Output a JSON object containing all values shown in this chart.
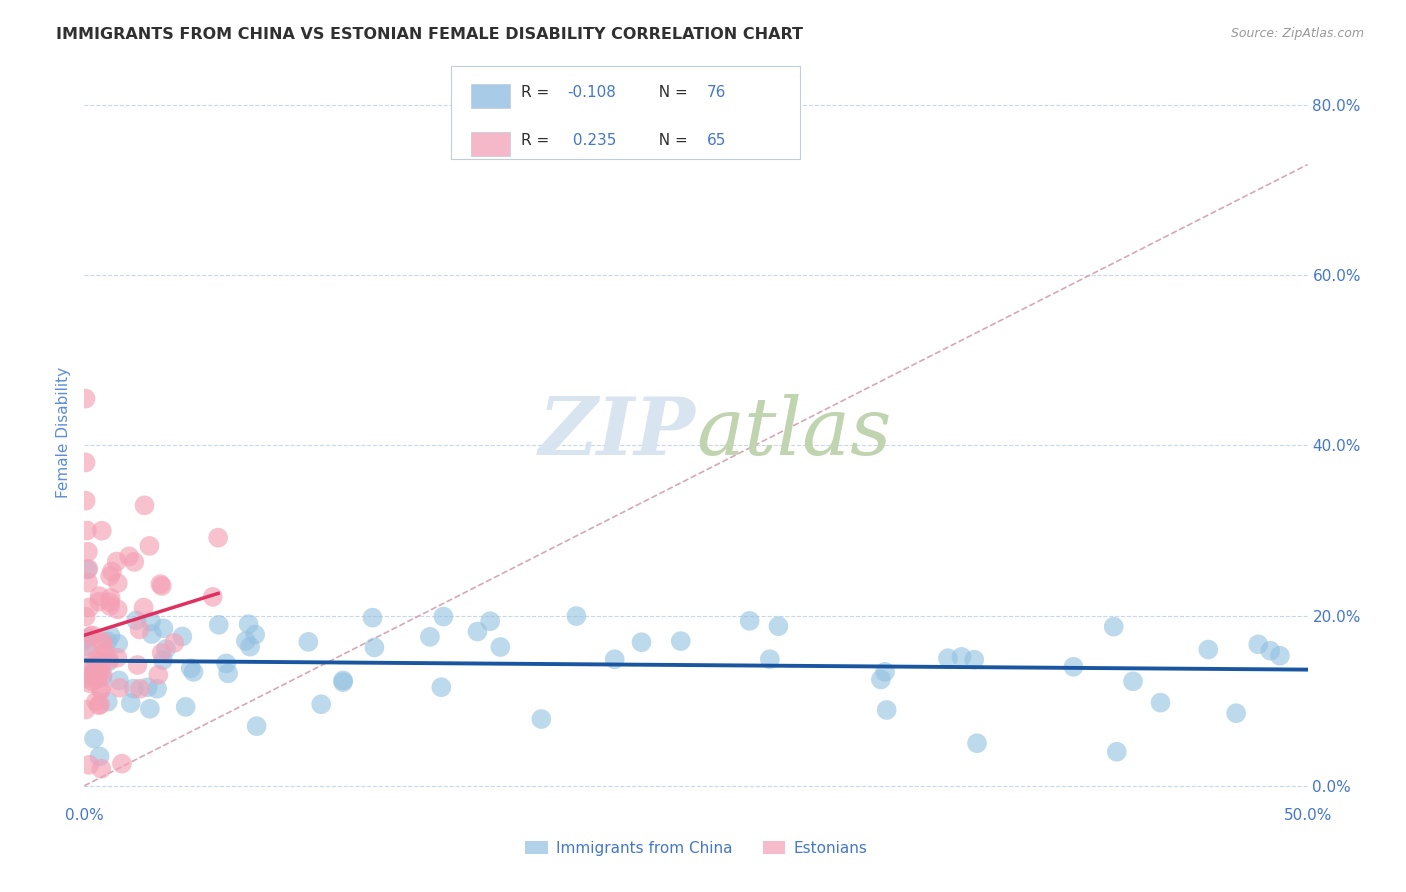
{
  "title": "IMMIGRANTS FROM CHINA VS ESTONIAN FEMALE DISABILITY CORRELATION CHART",
  "source_text": "Source: ZipAtlas.com",
  "ylabel": "Female Disability",
  "xlim": [
    0.0,
    0.5
  ],
  "ylim": [
    -0.02,
    0.85
  ],
  "xtick_vals": [
    0.0,
    0.1,
    0.2,
    0.3,
    0.4,
    0.5
  ],
  "xtick_labels": [
    "0.0%",
    "",
    "",
    "",
    "",
    "50.0%"
  ],
  "ytick_vals": [
    0.0,
    0.2,
    0.4,
    0.6,
    0.8
  ],
  "ytick_labels": [
    "0.0%",
    "20.0%",
    "40.0%",
    "60.0%",
    "80.0%"
  ],
  "legend_label1": "Immigrants from China",
  "legend_label2": "Estonians",
  "blue_color": "#92c0e0",
  "pink_color": "#f4a0b5",
  "blue_line_color": "#1a56a0",
  "pink_line_color": "#e03060",
  "diag_line_color": "#d0a0b0",
  "title_color": "#303030",
  "axis_label_color": "#5b8ed5",
  "tick_label_color": "#4477cc",
  "watermark_color": "#d8e4f0",
  "grid_color": "#c8d8e8",
  "background_color": "#ffffff",
  "legend_r1": "R = -0.108",
  "legend_n1": "N = 76",
  "legend_r2": "R =  0.235",
  "legend_n2": "N = 65",
  "legend_blue_patch": "#a8cce8",
  "legend_pink_patch": "#f4b8c8",
  "legend_border_color": "#c0ccd8",
  "r_value_color": "#4477cc",
  "n_value_color": "#4477cc",
  "r_label_color": "#303030",
  "n_label_color": "#303030"
}
